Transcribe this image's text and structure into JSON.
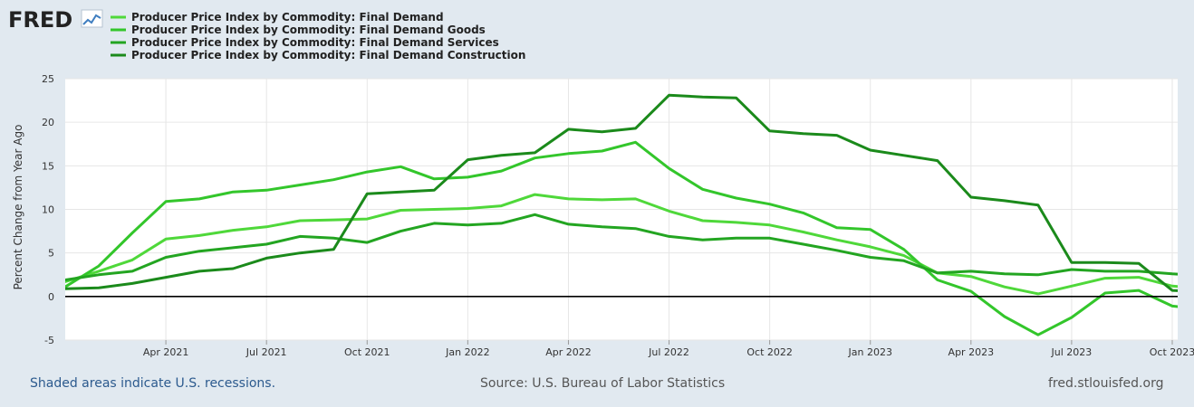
{
  "header": {
    "logo_text": "FRED"
  },
  "footer": {
    "recession_note": "Shaded areas indicate U.S. recessions.",
    "source": "Source: U.S. Bureau of Labor Statistics",
    "site": "fred.stlouisfed.org"
  },
  "chart_data": {
    "type": "line",
    "title": "",
    "ylabel": "Percent Change from Year Ago",
    "xlabel": "",
    "ylim": [
      -5,
      25
    ],
    "yticks": [
      "25",
      "20",
      "15",
      "10",
      "5",
      "0",
      "-5"
    ],
    "x_tick_labels": [
      "Apr 2021",
      "Jul 2021",
      "Oct 2021",
      "Jan 2022",
      "Apr 2022",
      "Jul 2022",
      "Oct 2022",
      "Jan 2023",
      "Apr 2023",
      "Jul 2023",
      "Oct 2023"
    ],
    "x": [
      "2021-01",
      "2021-02",
      "2021-03",
      "2021-04",
      "2021-05",
      "2021-06",
      "2021-07",
      "2021-08",
      "2021-09",
      "2021-10",
      "2021-11",
      "2021-12",
      "2022-01",
      "2022-02",
      "2022-03",
      "2022-04",
      "2022-05",
      "2022-06",
      "2022-07",
      "2022-08",
      "2022-09",
      "2022-10",
      "2022-11",
      "2022-12",
      "2023-01",
      "2023-02",
      "2023-03",
      "2023-04",
      "2023-05",
      "2023-06",
      "2023-07",
      "2023-08",
      "2023-09",
      "2023-10",
      "2023-11"
    ],
    "zero_line": true,
    "grid": true,
    "legend_position": "top-left",
    "series": [
      {
        "name": "Producer Price Index by Commodity: Final Demand",
        "color": "#4fd83a",
        "values": [
          1.7,
          2.9,
          4.2,
          6.6,
          7.0,
          7.6,
          8.0,
          8.7,
          8.8,
          8.9,
          9.9,
          10.0,
          10.1,
          10.4,
          11.7,
          11.2,
          11.1,
          11.2,
          9.8,
          8.7,
          8.5,
          8.2,
          7.4,
          6.5,
          5.7,
          4.7,
          2.7,
          2.3,
          1.1,
          0.3,
          1.2,
          2.1,
          2.2,
          1.2,
          0.9
        ]
      },
      {
        "name": "Producer Price Index by Commodity: Final Demand Goods",
        "color": "#33c62b",
        "values": [
          1.1,
          3.5,
          7.3,
          10.9,
          11.2,
          12.0,
          12.2,
          12.8,
          13.4,
          14.3,
          14.9,
          13.5,
          13.7,
          14.4,
          15.9,
          16.4,
          16.7,
          17.7,
          14.7,
          12.3,
          11.3,
          10.6,
          9.6,
          7.9,
          7.7,
          5.4,
          1.9,
          0.6,
          -2.3,
          -4.4,
          -2.4,
          0.4,
          0.7,
          -1.1,
          -1.5
        ]
      },
      {
        "name": "Producer Price Index by Commodity: Final Demand Services",
        "color": "#23a521",
        "values": [
          1.9,
          2.5,
          2.9,
          4.5,
          5.2,
          5.6,
          6.0,
          6.9,
          6.7,
          6.2,
          7.5,
          8.4,
          8.2,
          8.4,
          9.4,
          8.3,
          8.0,
          7.8,
          6.9,
          6.5,
          6.7,
          6.7,
          6.0,
          5.3,
          4.5,
          4.1,
          2.7,
          2.9,
          2.6,
          2.5,
          3.1,
          2.9,
          2.9,
          2.6,
          2.4
        ]
      },
      {
        "name": "Producer Price Index by Commodity: Final Demand Construction",
        "color": "#1b8a1b",
        "values": [
          0.9,
          1.0,
          1.5,
          2.2,
          2.9,
          3.2,
          4.4,
          5.0,
          5.4,
          11.8,
          12.0,
          12.2,
          15.7,
          16.2,
          16.5,
          19.2,
          18.9,
          19.3,
          23.1,
          22.9,
          22.8,
          19.0,
          18.7,
          18.5,
          16.8,
          16.2,
          15.6,
          11.4,
          11.0,
          10.5,
          3.9,
          3.9,
          3.8,
          0.7,
          0.5
        ]
      }
    ]
  }
}
